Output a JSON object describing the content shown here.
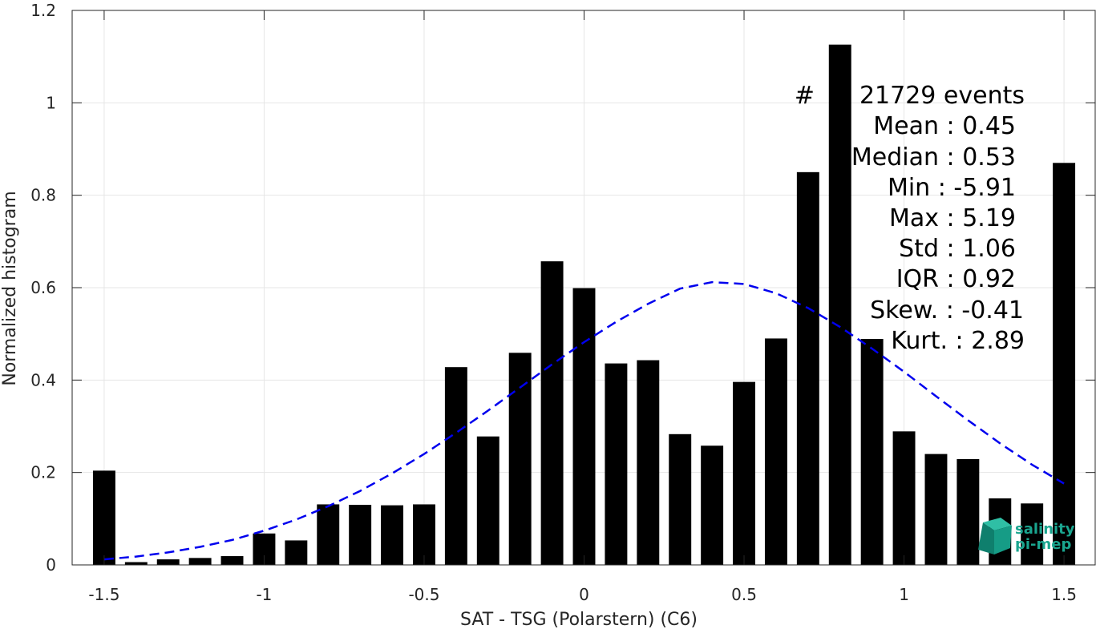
{
  "chart_data": {
    "type": "bar",
    "xlabel": "SAT - TSG (Polarstern) (C6)",
    "ylabel": "Normalized histogram",
    "xlim": [
      -1.6,
      1.6
    ],
    "ylim": [
      0,
      1.2
    ],
    "xticks": [
      -1.5,
      -1,
      -0.5,
      0,
      0.5,
      1,
      1.5
    ],
    "xtick_labels": [
      "-1.5",
      "-1",
      "-0.5",
      "0",
      "0.5",
      "1",
      "1.5"
    ],
    "yticks": [
      0,
      0.2,
      0.4,
      0.6,
      0.8,
      1,
      1.2
    ],
    "ytick_labels": [
      "0",
      "0.2",
      "0.4",
      "0.6",
      "0.8",
      "1",
      "1.2"
    ],
    "grid": true,
    "bars": {
      "x": [
        -1.5,
        -1.4,
        -1.3,
        -1.2,
        -1.1,
        -1.0,
        -0.9,
        -0.8,
        -0.7,
        -0.6,
        -0.5,
        -0.4,
        -0.3,
        -0.2,
        -0.1,
        0.0,
        0.1,
        0.2,
        0.3,
        0.4,
        0.5,
        0.6,
        0.7,
        0.8,
        0.9,
        1.0,
        1.1,
        1.2,
        1.3,
        1.4,
        1.5
      ],
      "values": [
        0.204,
        0.006,
        0.012,
        0.015,
        0.019,
        0.068,
        0.053,
        0.131,
        0.13,
        0.129,
        0.131,
        0.428,
        0.278,
        0.459,
        0.657,
        0.599,
        0.436,
        0.443,
        0.283,
        0.258,
        0.396,
        0.49,
        0.85,
        1.126,
        0.489,
        0.289,
        0.24,
        0.229,
        0.144,
        0.133,
        0.87
      ],
      "color": "#000000"
    },
    "series": [
      {
        "type": "line",
        "style": "dashed",
        "color": "#0000ee",
        "x": [
          -1.5,
          -1.4,
          -1.3,
          -1.2,
          -1.1,
          -1.0,
          -0.9,
          -0.8,
          -0.7,
          -0.6,
          -0.5,
          -0.4,
          -0.3,
          -0.2,
          -0.1,
          0.0,
          0.1,
          0.2,
          0.3,
          0.4,
          0.5,
          0.6,
          0.7,
          0.8,
          0.9,
          1.0,
          1.1,
          1.2,
          1.3,
          1.4,
          1.5
        ],
        "values": [
          0.012,
          0.018,
          0.027,
          0.039,
          0.054,
          0.074,
          0.098,
          0.127,
          0.16,
          0.198,
          0.24,
          0.286,
          0.334,
          0.384,
          0.434,
          0.482,
          0.526,
          0.565,
          0.598,
          0.612,
          0.608,
          0.588,
          0.556,
          0.515,
          0.468,
          0.418,
          0.365,
          0.313,
          0.263,
          0.217,
          0.176
        ]
      }
    ],
    "annotations": [
      {
        "label": "#",
        "value": "21729 events"
      },
      {
        "label": "Mean :",
        "value": "0.45"
      },
      {
        "label": "Median :",
        "value": "0.53"
      },
      {
        "label": "Min :",
        "value": "-5.91"
      },
      {
        "label": "Max :",
        "value": "5.19"
      },
      {
        "label": "Std :",
        "value": "1.06"
      },
      {
        "label": "IQR :",
        "value": "0.92"
      },
      {
        "label": "Skew. :",
        "value": "-0.41"
      },
      {
        "label": "Kurt. :",
        "value": "2.89"
      }
    ]
  },
  "logo": {
    "line1": "salinity",
    "line2": "pi-mep",
    "color": "#1aa58f",
    "icon": "salinity-cube-icon"
  }
}
